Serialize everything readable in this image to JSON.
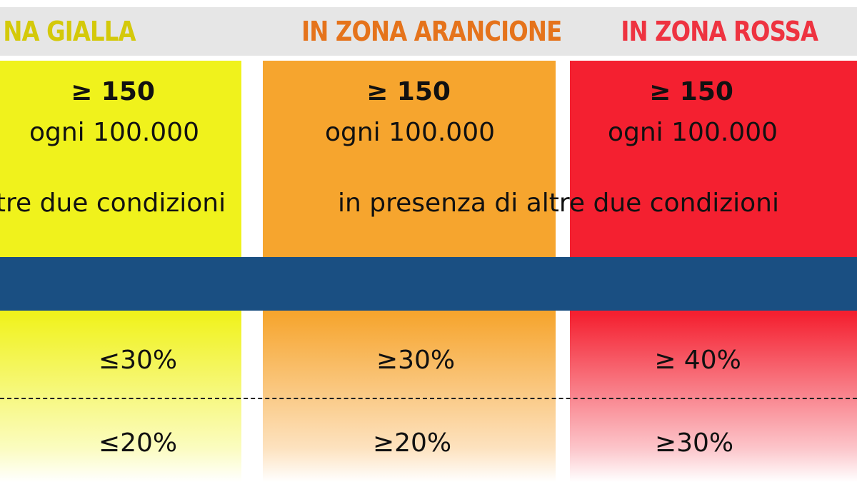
{
  "columns": [
    {
      "header": "NA GIALLA",
      "threshold": "≥ 150",
      "per": "ogni 100.000",
      "row1": "≤30%",
      "row2": "≤20%"
    },
    {
      "header": "IN ZONA ARANCIONE",
      "threshold": "≥ 150",
      "per": "ogni 100.000",
      "row1": "≥30%",
      "row2": "≥20%"
    },
    {
      "header": "IN ZONA ROSSA",
      "threshold": "≥ 150",
      "per": "ogni 100.000",
      "row1": "≥ 40%",
      "row2": "≥30%"
    }
  ],
  "conditions": [
    "ltre due condizioni",
    "in presenza di altre due condizioni"
  ]
}
